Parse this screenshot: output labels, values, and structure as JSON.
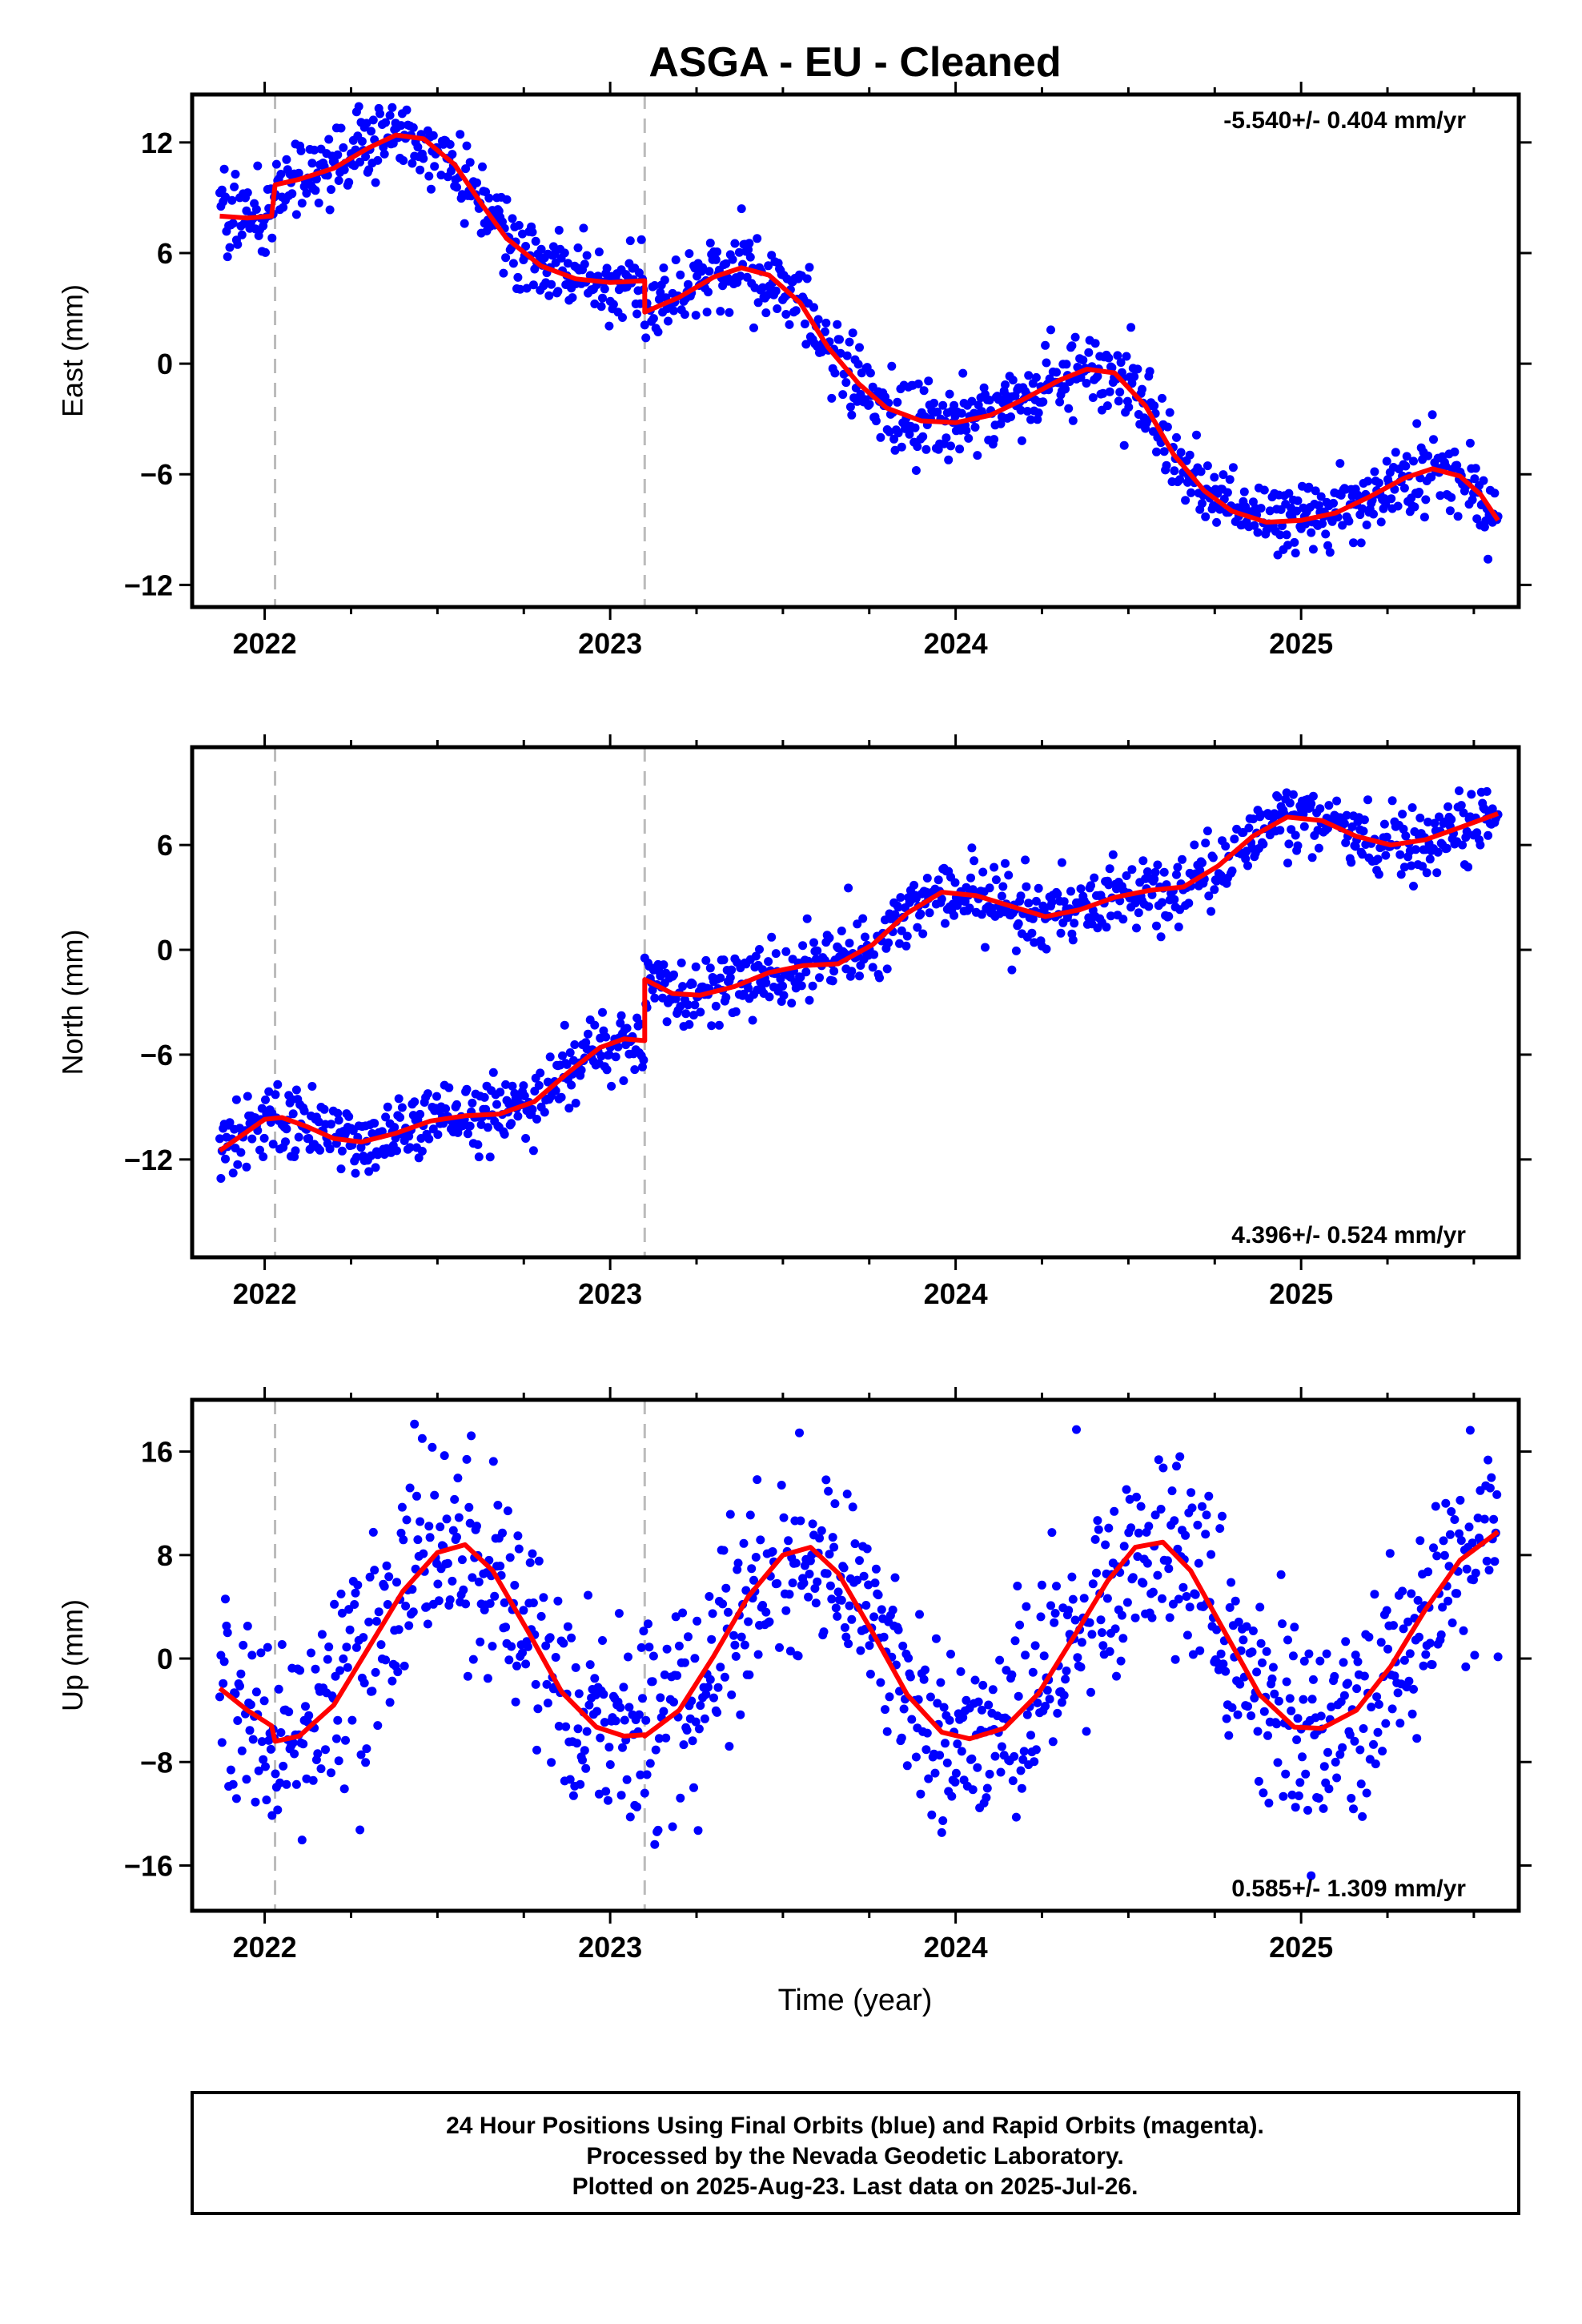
{
  "title": "ASGA  - EU - Cleaned",
  "x_axis_label": "Time (year)",
  "footer": {
    "line1": "24 Hour Positions Using Final Orbits (blue) and Rapid Orbits (magenta).",
    "line2": "Processed by the Nevada Geodetic Laboratory.",
    "line3": "Plotted on 2025-Aug-23. Last data on 2025-Jul-26."
  },
  "colors": {
    "data": "#0000ff",
    "model": "#ff0000",
    "offsets": "#bbbbbb",
    "frame": "#000000"
  },
  "chart_data": [
    {
      "type": "scatter",
      "component": "east",
      "ylabel": "East (mm)",
      "rate_text": "-5.540+/- 0.404 mm/yr",
      "rate_position": "top-right",
      "xlim": [
        2021.79,
        2025.63
      ],
      "ylim": [
        -13.2,
        14.6
      ],
      "yticks": [
        -12,
        -6,
        0,
        6,
        12
      ],
      "xticks": [
        2022,
        2023,
        2024,
        2025
      ],
      "offset_epochs": [
        2022.03,
        2023.1
      ],
      "model_points": [
        [
          2021.87,
          8.0
        ],
        [
          2021.95,
          7.9
        ],
        [
          2022.02,
          8.0
        ],
        [
          2022.03,
          9.7
        ],
        [
          2022.1,
          10.0
        ],
        [
          2022.2,
          10.6
        ],
        [
          2022.3,
          11.7
        ],
        [
          2022.38,
          12.4
        ],
        [
          2022.46,
          12.2
        ],
        [
          2022.55,
          10.8
        ],
        [
          2022.63,
          8.6
        ],
        [
          2022.7,
          6.8
        ],
        [
          2022.8,
          5.3
        ],
        [
          2022.9,
          4.6
        ],
        [
          2023.0,
          4.4
        ],
        [
          2023.1,
          4.5
        ],
        [
          2023.1,
          2.8
        ],
        [
          2023.2,
          3.6
        ],
        [
          2023.3,
          4.7
        ],
        [
          2023.38,
          5.2
        ],
        [
          2023.46,
          4.8
        ],
        [
          2023.55,
          3.3
        ],
        [
          2023.63,
          0.9
        ],
        [
          2023.72,
          -1.1
        ],
        [
          2023.8,
          -2.4
        ],
        [
          2023.9,
          -3.1
        ],
        [
          2024.0,
          -3.2
        ],
        [
          2024.1,
          -2.8
        ],
        [
          2024.2,
          -1.9
        ],
        [
          2024.3,
          -0.9
        ],
        [
          2024.38,
          -0.3
        ],
        [
          2024.46,
          -0.5
        ],
        [
          2024.55,
          -2.3
        ],
        [
          2024.63,
          -4.9
        ],
        [
          2024.72,
          -6.9
        ],
        [
          2024.8,
          -8.0
        ],
        [
          2024.9,
          -8.6
        ],
        [
          2025.0,
          -8.5
        ],
        [
          2025.1,
          -8.1
        ],
        [
          2025.2,
          -7.2
        ],
        [
          2025.3,
          -6.2
        ],
        [
          2025.38,
          -5.7
        ],
        [
          2025.46,
          -6.1
        ],
        [
          2025.52,
          -7.1
        ],
        [
          2025.57,
          -8.5
        ]
      ],
      "model_name": "",
      "data_name": ""
    },
    {
      "type": "scatter",
      "component": "north",
      "ylabel": "North (mm)",
      "rate_text": "4.396+/- 0.524 mm/yr",
      "rate_position": "bottom-right",
      "xlim": [
        2021.79,
        2025.63
      ],
      "ylim": [
        -17.6,
        11.6
      ],
      "yticks": [
        -12,
        -6,
        0,
        6
      ],
      "xticks": [
        2022,
        2023,
        2024,
        2025
      ],
      "offset_epochs": [
        2022.03,
        2023.1
      ],
      "model_points": [
        [
          2021.87,
          -11.5
        ],
        [
          2021.95,
          -10.4
        ],
        [
          2022.0,
          -9.7
        ],
        [
          2022.05,
          -9.6
        ],
        [
          2022.12,
          -10.1
        ],
        [
          2022.2,
          -10.8
        ],
        [
          2022.28,
          -11.0
        ],
        [
          2022.38,
          -10.5
        ],
        [
          2022.48,
          -9.8
        ],
        [
          2022.58,
          -9.5
        ],
        [
          2022.68,
          -9.4
        ],
        [
          2022.78,
          -8.7
        ],
        [
          2022.88,
          -7.0
        ],
        [
          2022.97,
          -5.6
        ],
        [
          2023.04,
          -5.1
        ],
        [
          2023.1,
          -5.2
        ],
        [
          2023.1,
          -1.7
        ],
        [
          2023.18,
          -2.5
        ],
        [
          2023.26,
          -2.6
        ],
        [
          2023.36,
          -2.1
        ],
        [
          2023.46,
          -1.3
        ],
        [
          2023.56,
          -0.9
        ],
        [
          2023.66,
          -0.8
        ],
        [
          2023.76,
          0.3
        ],
        [
          2023.86,
          2.1
        ],
        [
          2023.96,
          3.3
        ],
        [
          2024.06,
          3.1
        ],
        [
          2024.16,
          2.5
        ],
        [
          2024.26,
          1.9
        ],
        [
          2024.36,
          2.3
        ],
        [
          2024.46,
          3.0
        ],
        [
          2024.56,
          3.4
        ],
        [
          2024.66,
          3.6
        ],
        [
          2024.76,
          4.8
        ],
        [
          2024.86,
          6.5
        ],
        [
          2024.96,
          7.6
        ],
        [
          2025.06,
          7.4
        ],
        [
          2025.16,
          6.5
        ],
        [
          2025.26,
          6.0
        ],
        [
          2025.36,
          6.3
        ],
        [
          2025.46,
          7.0
        ],
        [
          2025.57,
          7.8
        ]
      ],
      "model_name": "",
      "data_name": ""
    },
    {
      "type": "scatter",
      "component": "up",
      "ylabel": "Up (mm)",
      "rate_text": "0.585+/- 1.309 mm/yr",
      "rate_position": "bottom-right",
      "xlim": [
        2021.79,
        2025.63
      ],
      "ylim": [
        -19.5,
        20.0
      ],
      "yticks": [
        -16,
        -8,
        0,
        8,
        16
      ],
      "xticks": [
        2022,
        2023,
        2024,
        2025
      ],
      "offset_epochs": [
        2022.03,
        2023.1
      ],
      "model_points": [
        [
          2021.87,
          -2.3
        ],
        [
          2021.95,
          -4.0
        ],
        [
          2022.02,
          -5.2
        ],
        [
          2022.03,
          -6.4
        ],
        [
          2022.1,
          -6.0
        ],
        [
          2022.2,
          -3.6
        ],
        [
          2022.3,
          0.8
        ],
        [
          2022.4,
          5.2
        ],
        [
          2022.5,
          8.2
        ],
        [
          2022.58,
          8.8
        ],
        [
          2022.66,
          6.8
        ],
        [
          2022.76,
          2.2
        ],
        [
          2022.86,
          -2.6
        ],
        [
          2022.96,
          -5.3
        ],
        [
          2023.04,
          -6.0
        ],
        [
          2023.1,
          -5.9
        ],
        [
          2023.1,
          -6.0
        ],
        [
          2023.2,
          -4.0
        ],
        [
          2023.3,
          0.2
        ],
        [
          2023.4,
          4.8
        ],
        [
          2023.5,
          8.0
        ],
        [
          2023.58,
          8.6
        ],
        [
          2023.66,
          6.6
        ],
        [
          2023.76,
          2.0
        ],
        [
          2023.86,
          -2.8
        ],
        [
          2023.96,
          -5.7
        ],
        [
          2024.04,
          -6.2
        ],
        [
          2024.14,
          -5.4
        ],
        [
          2024.24,
          -2.7
        ],
        [
          2024.34,
          1.6
        ],
        [
          2024.44,
          6.0
        ],
        [
          2024.52,
          8.6
        ],
        [
          2024.6,
          9.0
        ],
        [
          2024.68,
          6.8
        ],
        [
          2024.78,
          2.0
        ],
        [
          2024.88,
          -2.8
        ],
        [
          2024.98,
          -5.3
        ],
        [
          2025.06,
          -5.4
        ],
        [
          2025.16,
          -4.0
        ],
        [
          2025.26,
          -0.6
        ],
        [
          2025.36,
          3.8
        ],
        [
          2025.46,
          7.6
        ],
        [
          2025.57,
          9.8
        ]
      ],
      "model_name": "",
      "data_name": ""
    }
  ]
}
